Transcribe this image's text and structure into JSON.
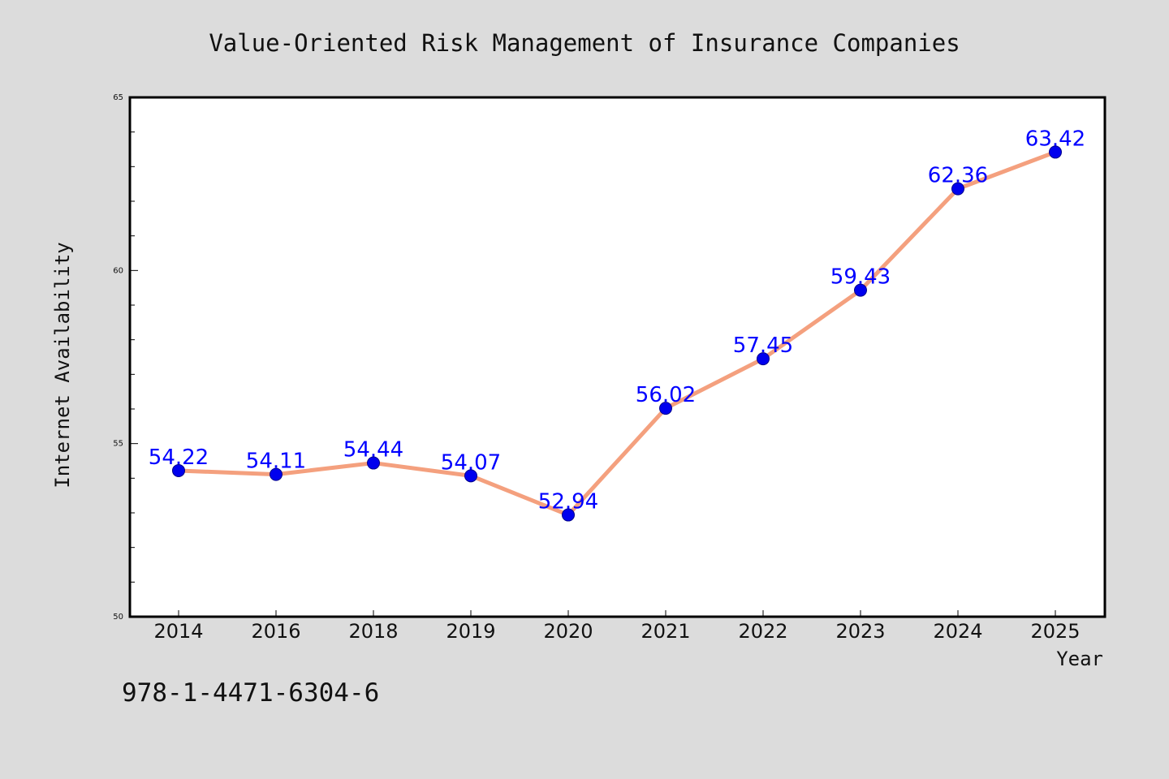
{
  "chart_data": {
    "type": "line",
    "title": "Value-Oriented Risk Management of Insurance Companies",
    "xlabel": "Year",
    "ylabel": "Internet Availability",
    "categories": [
      "2014",
      "2016",
      "2018",
      "2019",
      "2020",
      "2021",
      "2022",
      "2023",
      "2024",
      "2025"
    ],
    "series": [
      {
        "values": [
          54.22,
          54.11,
          54.44,
          54.07,
          52.94,
          56.02,
          57.45,
          59.43,
          62.36,
          63.42
        ],
        "labels": [
          "54.22",
          "54.11",
          "54.44",
          "54.07",
          "52.94",
          "56.02",
          "57.45",
          "59.43",
          "62.36",
          "63.42"
        ]
      }
    ],
    "ylim": [
      50,
      65
    ],
    "yticks": [
      "50",
      "55",
      "60",
      "65"
    ],
    "grid": false,
    "legend": "none"
  },
  "annotation": "978-1-4471-6304-6",
  "colors": {
    "background": "#dcdcdc",
    "plot_background": "#ffffff",
    "line": "#f4a07e",
    "marker": "#0000ee",
    "data_label": "#0000ff"
  }
}
